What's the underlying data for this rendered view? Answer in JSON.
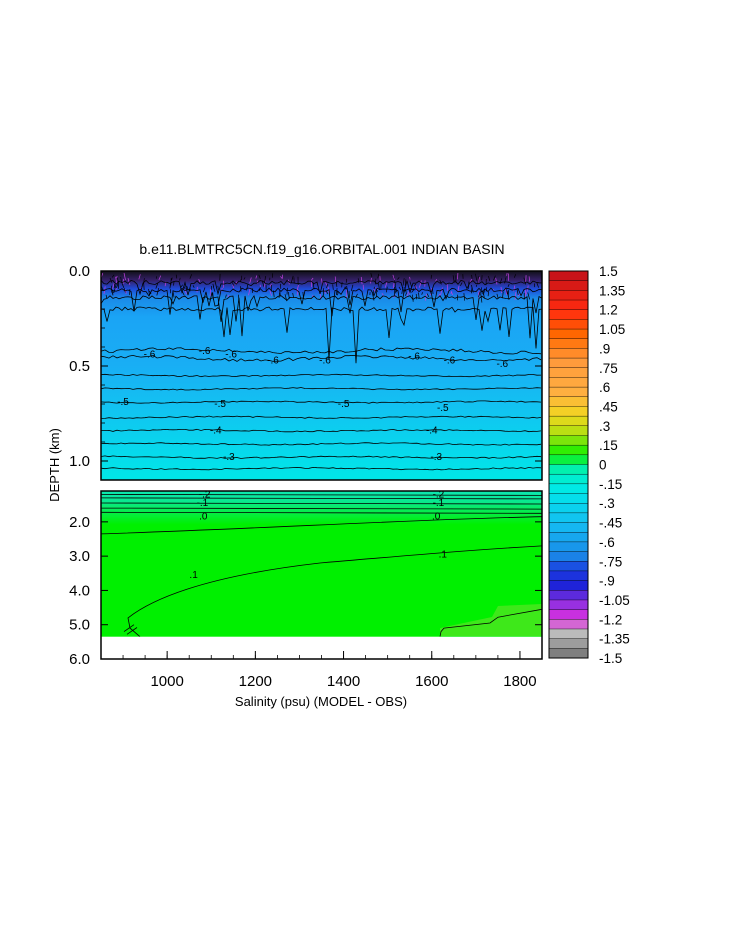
{
  "chart_data": {
    "type": "heatmap",
    "title": "b.e11.BLMTRC5CN.f19_g16.ORBITAL.001 INDIAN BASIN",
    "xlabel": "Salinity (psu) (MODEL - OBS)",
    "ylabel": "DEPTH (km)",
    "xlim": [
      850,
      1850
    ],
    "x_ticks": [
      "1000",
      "1200",
      "1400",
      "1600",
      "1800"
    ],
    "x_tick_values": [
      1000,
      1200,
      1400,
      1600,
      1800
    ],
    "upper_panel": {
      "ylim": [
        0.0,
        1.1
      ],
      "y_ticks": [
        "0.0",
        "0.5",
        "1.0"
      ],
      "y_tick_values": [
        0.0,
        0.5,
        1.0
      ],
      "contour_labels": [
        {
          "text": "-.6",
          "x": 960,
          "y": 0.44
        },
        {
          "text": "-.6",
          "x": 1085,
          "y": 0.42
        },
        {
          "text": "-.6",
          "x": 1145,
          "y": 0.44
        },
        {
          "text": "-.6",
          "x": 1240,
          "y": 0.47
        },
        {
          "text": "-.6",
          "x": 1358,
          "y": 0.47
        },
        {
          "text": "-.6",
          "x": 1560,
          "y": 0.45
        },
        {
          "text": "-.6",
          "x": 1640,
          "y": 0.47
        },
        {
          "text": "-.6",
          "x": 1760,
          "y": 0.49
        },
        {
          "text": "-.5",
          "x": 900,
          "y": 0.69
        },
        {
          "text": "-.5",
          "x": 1120,
          "y": 0.7
        },
        {
          "text": "-.5",
          "x": 1400,
          "y": 0.7
        },
        {
          "text": "-.5",
          "x": 1625,
          "y": 0.72
        },
        {
          "text": "-.4",
          "x": 1110,
          "y": 0.84
        },
        {
          "text": "-.4",
          "x": 1600,
          "y": 0.84
        },
        {
          "text": "-.3",
          "x": 1140,
          "y": 0.98
        },
        {
          "text": "-.3",
          "x": 1610,
          "y": 0.98
        }
      ]
    },
    "lower_panel": {
      "ylim": [
        1.1,
        6.0
      ],
      "y_ticks": [
        "2.0",
        "3.0",
        "4.0",
        "5.0",
        "6.0"
      ],
      "y_tick_values": [
        2.0,
        3.0,
        4.0,
        5.0,
        6.0
      ],
      "bottom_mask_depth": 5.35,
      "contour_labels": [
        {
          "text": "-.2",
          "x": 1085,
          "y": 1.2
        },
        {
          "text": "-.1",
          "x": 1080,
          "y": 1.45
        },
        {
          "text": "-.2",
          "x": 1615,
          "y": 1.2
        },
        {
          "text": "-.1",
          "x": 1615,
          "y": 1.45
        },
        {
          "text": ".0",
          "x": 1082,
          "y": 1.85
        },
        {
          "text": ".0",
          "x": 1610,
          "y": 1.85
        },
        {
          "text": ".1",
          "x": 1060,
          "y": 3.55
        },
        {
          "text": ".1",
          "x": 1625,
          "y": 2.95
        }
      ]
    },
    "colorbar": {
      "labels": [
        "1.5",
        "1.35",
        "1.2",
        "1.05",
        ".9",
        ".75",
        ".6",
        ".45",
        ".3",
        ".15",
        "0",
        "-.15",
        "-.3",
        "-.45",
        "-.6",
        "-.75",
        "-.9",
        "-1.05",
        "-1.2",
        "-1.35",
        "-1.5"
      ],
      "range": [
        -1.5,
        1.5
      ],
      "step": 0.075
    },
    "colors": {
      "surface_dark": "#101018",
      "magenta": "#c040e0",
      "blue_mid": "#1aa4f5",
      "blue_light": "#14bff2",
      "cyan": "#00e8e8",
      "aqua": "#0de8b2",
      "green": "#00f000",
      "green_light": "#3ee81a"
    }
  }
}
